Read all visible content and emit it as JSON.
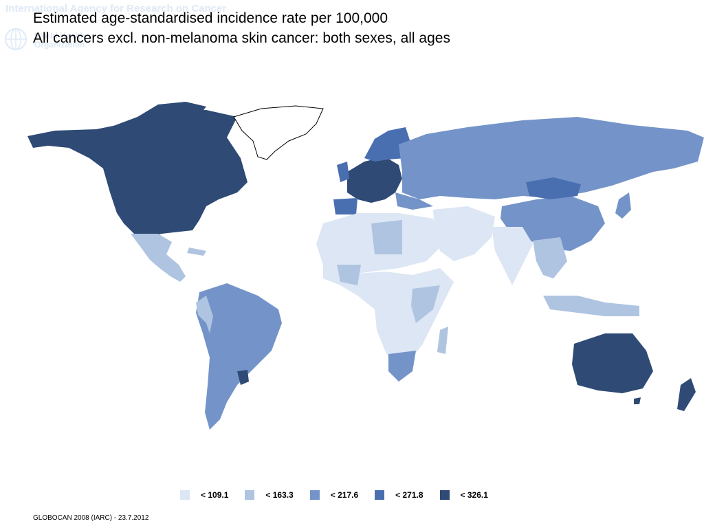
{
  "title": {
    "line1": "Estimated age-standardised incidence rate per 100,000",
    "line2": "All cancers excl. non-melanoma skin cancer: both sexes, all ages"
  },
  "watermark": {
    "agency": "International Agency for Research on Cancer",
    "org": "World Health Organization"
  },
  "legend": {
    "items": [
      {
        "label": "< 109.1",
        "color": "#dce6f4"
      },
      {
        "label": "< 163.3",
        "color": "#afc4e0"
      },
      {
        "label": "< 217.6",
        "color": "#7494c9"
      },
      {
        "label": "< 271.8",
        "color": "#4a6fb0"
      },
      {
        "label": "< 326.1",
        "color": "#2e4a75"
      }
    ]
  },
  "source": "GLOBOCAN 2008 (IARC) - 23.7.2012",
  "map_data": {
    "regions": [
      {
        "name": "North America",
        "class": "< 326.1"
      },
      {
        "name": "Greenland",
        "class": "no data"
      },
      {
        "name": "Mexico / Central America",
        "class": "< 163.3"
      },
      {
        "name": "South America",
        "class": "< 217.6"
      },
      {
        "name": "Uruguay",
        "class": "< 326.1"
      },
      {
        "name": "Western Europe",
        "class": "< 326.1"
      },
      {
        "name": "Spain",
        "class": "< 271.8"
      },
      {
        "name": "Eastern Europe / Russia",
        "class": "< 217.6"
      },
      {
        "name": "North Africa / Middle East",
        "class": "< 109.1"
      },
      {
        "name": "Sub-Saharan Africa",
        "class": "< 109.1"
      },
      {
        "name": "Southern Africa",
        "class": "< 217.6"
      },
      {
        "name": "South Asia",
        "class": "< 109.1"
      },
      {
        "name": "China",
        "class": "< 217.6"
      },
      {
        "name": "Mongolia",
        "class": "< 271.8"
      },
      {
        "name": "Southeast Asia",
        "class": "< 163.3"
      },
      {
        "name": "Australia",
        "class": "< 326.1"
      },
      {
        "name": "New Zealand",
        "class": "< 326.1"
      }
    ]
  }
}
